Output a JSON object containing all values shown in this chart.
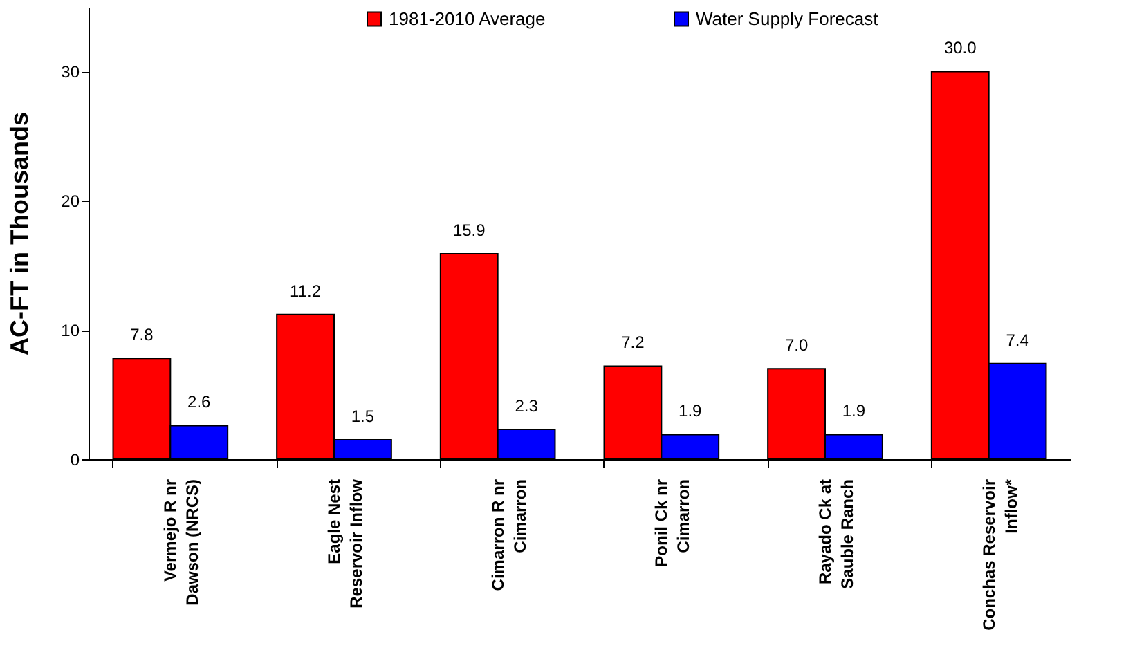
{
  "chart_data": {
    "type": "bar",
    "ylabel": "AC-FT in Thousands",
    "categories": [
      "Vermejo  R nr\nDawson (NRCS)",
      "Eagle Nest\nReservoir Inflow",
      "Cimarron R nr\nCimarron",
      "Ponil Ck nr\nCimarron",
      "Rayado Ck at\nSauble Ranch",
      "Conchas Reservoir\nInflow*"
    ],
    "series": [
      {
        "name": "1981-2010 Average",
        "color": "#ff0000",
        "values": [
          7.8,
          11.2,
          15.9,
          7.2,
          7.0,
          30.0
        ],
        "value_labels": [
          "7.8",
          "11.2",
          "15.9",
          "7.2",
          "7.0",
          "30.0"
        ]
      },
      {
        "name": "Water Supply Forecast",
        "color": "#0000ff",
        "values": [
          2.6,
          1.5,
          2.3,
          1.9,
          1.9,
          7.4
        ],
        "value_labels": [
          "2.6",
          "1.5",
          "2.3",
          "1.9",
          "1.9",
          "7.4"
        ]
      }
    ],
    "ylim": [
      0,
      35
    ],
    "yticks": [
      0,
      10,
      20,
      30
    ],
    "grid": false,
    "legend": "top"
  }
}
